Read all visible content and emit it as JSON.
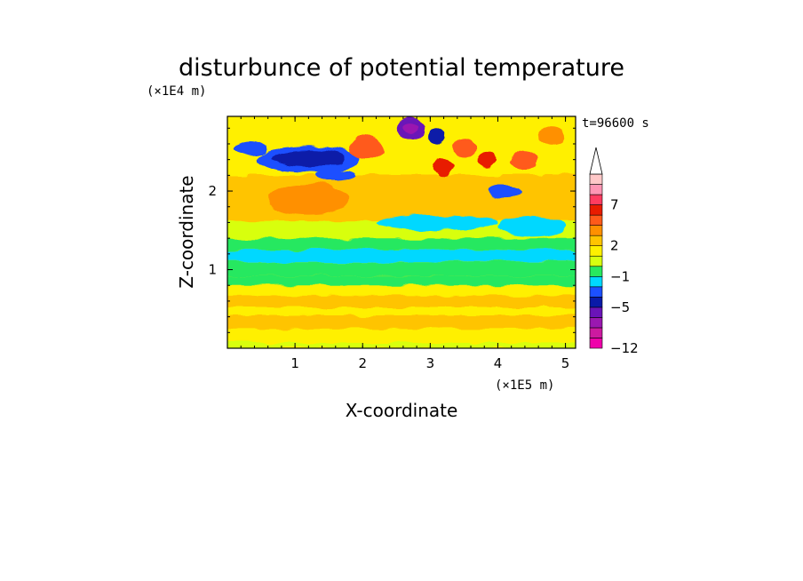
{
  "chart_data": {
    "type": "heatmap",
    "title": "disturbunce of potential temperature",
    "time_label": "t=96600 s",
    "xlabel": "X-coordinate",
    "ylabel": "Z-coordinate",
    "x_unit": "(×1E5 m)",
    "y_unit": "(×1E4 m)",
    "xlim": [
      0,
      5.15
    ],
    "ylim": [
      0,
      2.95
    ],
    "x_ticks": [
      "1",
      "2",
      "3",
      "4",
      "5"
    ],
    "y_ticks": [
      "1",
      "2"
    ],
    "colorbar": {
      "colors": [
        "#ee00aa",
        "#cc1aa0",
        "#9a18b0",
        "#6a14b8",
        "#0a1aa8",
        "#1c50ff",
        "#00d8ff",
        "#28e860",
        "#d8ff10",
        "#fff000",
        "#ffc400",
        "#ff9000",
        "#ff5a1a",
        "#e81c00",
        "#ff3c60",
        "#ff96b4",
        "#ffc8c8"
      ],
      "labels": [
        "-12",
        "-5",
        "-1",
        "2",
        "7"
      ],
      "label_levels": [
        0,
        4,
        7,
        10,
        14
      ],
      "extend_top": true
    },
    "fields": {
      "background_value": 9,
      "bands": [
        {
          "z0": 0,
          "z1": 0.07,
          "value": 8
        },
        {
          "z0": 0.07,
          "z1": 0.25,
          "value": 9
        },
        {
          "z0": 0.25,
          "z1": 0.42,
          "value": 10
        },
        {
          "z0": 0.42,
          "z1": 0.52,
          "value": 9
        },
        {
          "z0": 0.52,
          "z1": 0.67,
          "value": 10
        },
        {
          "z0": 0.67,
          "z1": 0.8,
          "value": 9
        },
        {
          "z0": 0.8,
          "z1": 0.92,
          "value": 7
        },
        {
          "z0": 0.92,
          "z1": 1.1,
          "value": 7
        },
        {
          "z0": 1.1,
          "z1": 1.25,
          "value": 6
        },
        {
          "z0": 1.25,
          "z1": 1.4,
          "value": 7
        },
        {
          "z0": 1.4,
          "z1": 1.62,
          "value": 8
        },
        {
          "z0": 1.62,
          "z1": 2.2,
          "value": 10
        },
        {
          "z0": 2.2,
          "z1": 2.95,
          "value": 9
        }
      ],
      "blobs": [
        {
          "x": 1.2,
          "z": 2.4,
          "rx": 0.75,
          "rz": 0.17,
          "value": 5
        },
        {
          "x": 1.2,
          "z": 2.42,
          "rx": 0.55,
          "rz": 0.11,
          "value": 4
        },
        {
          "x": 0.35,
          "z": 2.55,
          "rx": 0.25,
          "rz": 0.1,
          "value": 5
        },
        {
          "x": 2.7,
          "z": 2.8,
          "rx": 0.22,
          "rz": 0.14,
          "value": 3
        },
        {
          "x": 2.7,
          "z": 2.8,
          "rx": 0.12,
          "rz": 0.07,
          "value": 2
        },
        {
          "x": 3.1,
          "z": 2.7,
          "rx": 0.13,
          "rz": 0.1,
          "value": 4
        },
        {
          "x": 3.2,
          "z": 2.3,
          "rx": 0.15,
          "rz": 0.11,
          "value": 13
        },
        {
          "x": 3.5,
          "z": 2.55,
          "rx": 0.18,
          "rz": 0.12,
          "value": 12
        },
        {
          "x": 3.85,
          "z": 2.4,
          "rx": 0.15,
          "rz": 0.1,
          "value": 13
        },
        {
          "x": 4.4,
          "z": 2.4,
          "rx": 0.2,
          "rz": 0.13,
          "value": 12
        },
        {
          "x": 4.8,
          "z": 2.7,
          "rx": 0.2,
          "rz": 0.13,
          "value": 11
        },
        {
          "x": 3.1,
          "z": 1.6,
          "rx": 0.9,
          "rz": 0.09,
          "value": 6
        },
        {
          "x": 4.5,
          "z": 1.55,
          "rx": 0.5,
          "rz": 0.13,
          "value": 6
        },
        {
          "x": 1.2,
          "z": 1.9,
          "rx": 0.6,
          "rz": 0.2,
          "value": 11
        },
        {
          "x": 2.05,
          "z": 2.55,
          "rx": 0.25,
          "rz": 0.15,
          "value": 12
        },
        {
          "x": 4.1,
          "z": 2.0,
          "rx": 0.25,
          "rz": 0.08,
          "value": 5
        },
        {
          "x": 1.6,
          "z": 2.2,
          "rx": 0.3,
          "rz": 0.07,
          "value": 5
        }
      ]
    }
  }
}
